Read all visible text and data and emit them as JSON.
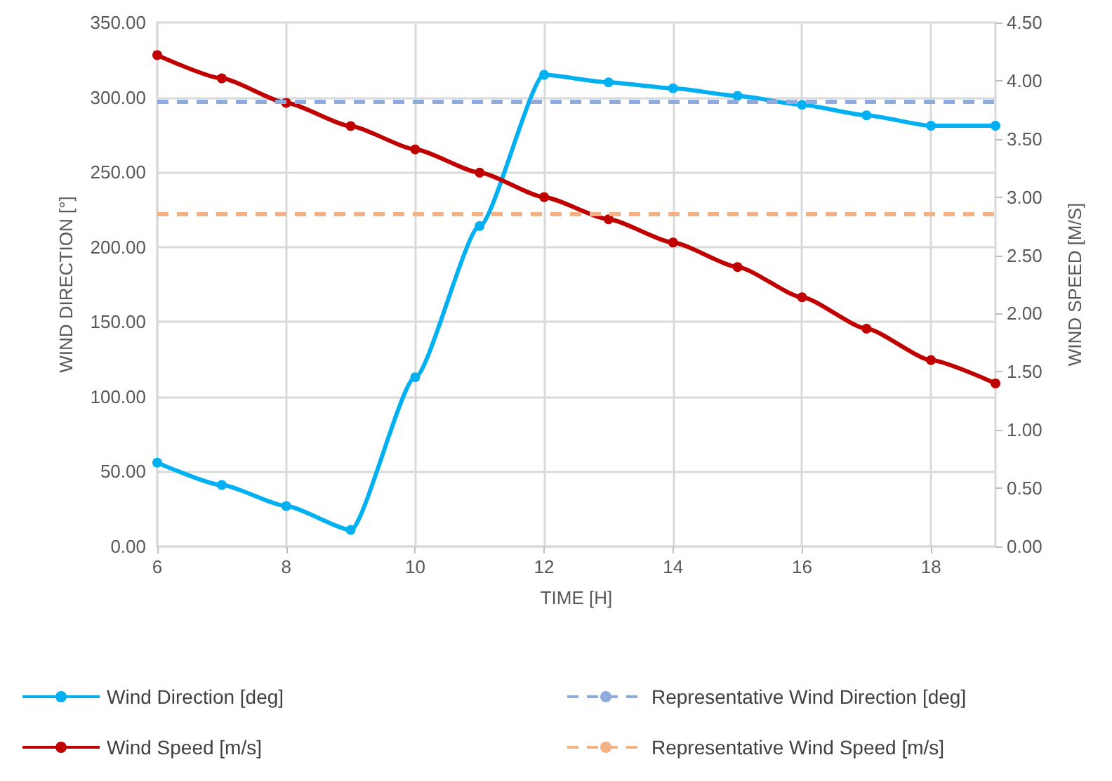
{
  "chart_data": {
    "type": "line",
    "xlabel": "TIME [H]",
    "ylabel": "WIND DIRECTION [°]",
    "y2label": "WIND SPEED [M/S]",
    "x": [
      6,
      7,
      8,
      9,
      10,
      11,
      12,
      13,
      14,
      15,
      16,
      17,
      18,
      19
    ],
    "xlim": [
      6,
      19
    ],
    "xticks": [
      6,
      8,
      10,
      12,
      14,
      16,
      18
    ],
    "ylim": [
      0,
      350
    ],
    "yticks": [
      {
        "value": 0,
        "label": "0.00"
      },
      {
        "value": 50,
        "label": "50.00"
      },
      {
        "value": 100,
        "label": "100.00"
      },
      {
        "value": 150,
        "label": "150.00"
      },
      {
        "value": 200,
        "label": "200.00"
      },
      {
        "value": 250,
        "label": "250.00"
      },
      {
        "value": 300,
        "label": "300.00"
      },
      {
        "value": 350,
        "label": "350.00"
      }
    ],
    "y2lim": [
      0,
      4.5
    ],
    "y2ticks": [
      {
        "value": 0,
        "label": "0.00"
      },
      {
        "value": 0.5,
        "label": "0.50"
      },
      {
        "value": 1,
        "label": "1.00"
      },
      {
        "value": 1.5,
        "label": "1.50"
      },
      {
        "value": 2,
        "label": "2.00"
      },
      {
        "value": 2.5,
        "label": "2.50"
      },
      {
        "value": 3,
        "label": "3.00"
      },
      {
        "value": 3.5,
        "label": "3.50"
      },
      {
        "value": 4,
        "label": "4.00"
      },
      {
        "value": 4.5,
        "label": "4.50"
      }
    ],
    "grid": true,
    "legend": "bottom",
    "marker": "circle",
    "series": [
      {
        "name": "Wind Direction [deg]",
        "color": "#00b0f0",
        "values": [
          56,
          41,
          27,
          11,
          113,
          214,
          315,
          310,
          306,
          301,
          295,
          288,
          281,
          281
        ]
      },
      {
        "name": "Wind Speed [m/s]",
        "color": "#c00000",
        "axis": "y2",
        "values": [
          4.22,
          4.02,
          3.81,
          3.61,
          3.41,
          3.21,
          3.0,
          2.81,
          2.61,
          2.4,
          2.14,
          1.87,
          1.6,
          1.4
        ]
      }
    ],
    "ref_lines": [
      {
        "axis": "y",
        "value": 297,
        "label": "Representative Wind Direction [deg]",
        "color": "#8faadc",
        "line_style": "dashed"
      },
      {
        "axis": "y2",
        "value": 2.86,
        "label": "Representative Wind Speed [m/s]",
        "color": "#f4b183",
        "line_style": "dashed"
      }
    ]
  }
}
